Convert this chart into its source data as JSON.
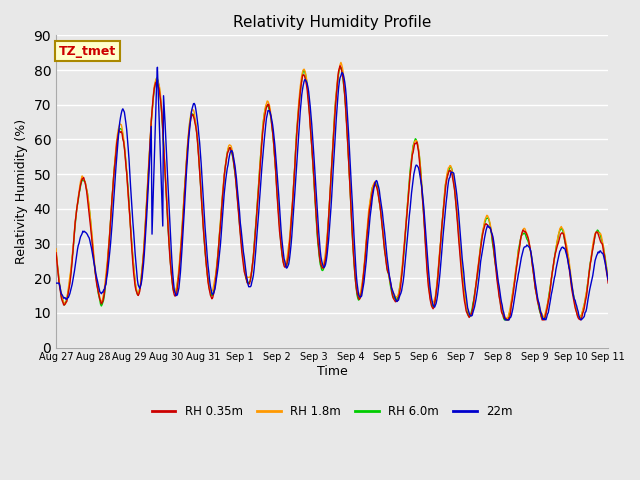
{
  "title": "Relativity Humidity Profile",
  "xlabel": "Time",
  "ylabel": "Relativity Humidity (%)",
  "ylim": [
    0,
    90
  ],
  "yticks": [
    0,
    10,
    20,
    30,
    40,
    50,
    60,
    70,
    80,
    90
  ],
  "background_color": "#e8e8e8",
  "series_colors": [
    "#cc0000",
    "#ff9900",
    "#00cc00",
    "#0000cc"
  ],
  "series_labels": [
    "RH 0.35m",
    "RH 1.8m",
    "RH 6.0m",
    "22m"
  ],
  "legend_box_color": "#ffffcc",
  "legend_box_edge": "#aa8800",
  "legend_text": "TZ_tmet",
  "legend_text_color": "#cc0000",
  "xtick_labels": [
    "Aug 27",
    "Aug 28",
    "Aug 29",
    "Aug 30",
    "Aug 31",
    "Sep 1",
    "Sep 2",
    "Sep 3",
    "Sep 4",
    "Sep 5",
    "Sep 6",
    "Sep 7",
    "Sep 8",
    "Sep 9",
    "Sep 10",
    "Sep 11"
  ],
  "line_width": 1.0,
  "n_days": 15
}
